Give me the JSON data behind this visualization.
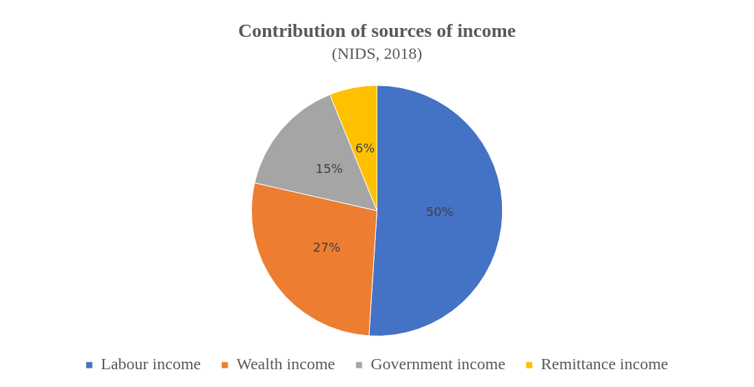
{
  "chart_data": {
    "type": "pie",
    "title": "Contribution of sources of income",
    "subtitle": "(NIDS, 2018)",
    "categories": [
      "Labour income",
      "Wealth income",
      "Government income",
      "Remittance income"
    ],
    "values": [
      50,
      27,
      15,
      6
    ],
    "colors": [
      "#4472c4",
      "#ed7d31",
      "#a5a5a5",
      "#ffc000"
    ],
    "value_labels": [
      "50%",
      "27%",
      "15%",
      "6%"
    ],
    "legend": "bottom"
  }
}
